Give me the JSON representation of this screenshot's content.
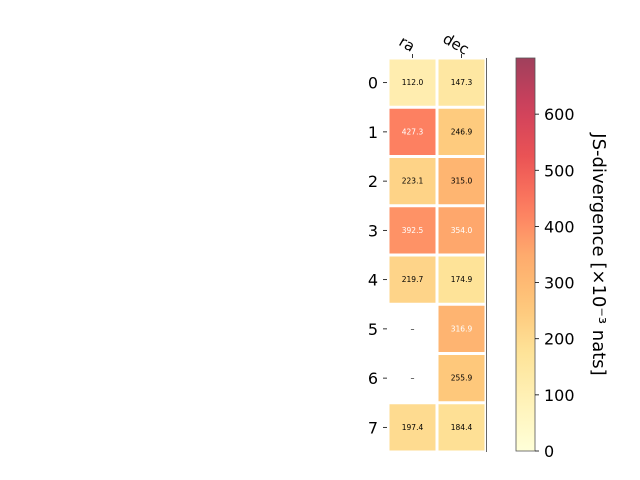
{
  "chart_data": {
    "type": "heatmap",
    "columns": [
      "ra",
      "dec"
    ],
    "rows": [
      "0",
      "1",
      "2",
      "3",
      "4",
      "5",
      "6",
      "7"
    ],
    "values": [
      [
        112.0,
        147.3
      ],
      [
        427.3,
        246.9
      ],
      [
        223.1,
        315.0
      ],
      [
        392.5,
        354.0
      ],
      [
        219.7,
        174.9
      ],
      [
        null,
        316.9
      ],
      [
        null,
        255.9
      ],
      [
        197.4,
        184.4
      ]
    ],
    "cell_labels": [
      [
        "112.0",
        "147.3"
      ],
      [
        "427.3",
        "246.9"
      ],
      [
        "223.1",
        "315.0"
      ],
      [
        "392.5",
        "354.0"
      ],
      [
        "219.7",
        "174.9"
      ],
      [
        "–",
        "316.9"
      ],
      [
        "–",
        "255.9"
      ],
      [
        "197.4",
        "184.4"
      ]
    ],
    "colorbar": {
      "label": "JS-divergence [×10⁻³ nats]",
      "range": [
        0,
        700
      ],
      "ticks": [
        0,
        100,
        200,
        300,
        400,
        500,
        600
      ],
      "tick_labels": [
        "0",
        "100",
        "200",
        "300",
        "400",
        "500",
        "600"
      ],
      "colormap": "YlOrRd"
    },
    "grid": false,
    "cell_border_color": "#ffffff"
  }
}
